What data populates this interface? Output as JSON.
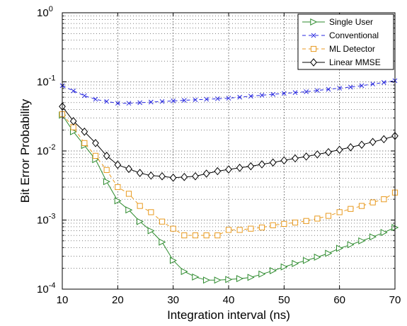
{
  "chart_data": {
    "type": "line",
    "xlabel": "Integration interval (ns)",
    "ylabel": "Bit Error Probability",
    "xlim": [
      10,
      70
    ],
    "ylim": [
      0.0001,
      1
    ],
    "yscale": "log",
    "grid": true,
    "legend_position": "top-right",
    "x_ticks": [
      "10",
      "20",
      "30",
      "40",
      "50",
      "60",
      "70"
    ],
    "y_ticks": [
      {
        "base": "10",
        "exp": "0"
      },
      {
        "base": "10",
        "exp": "-1"
      },
      {
        "base": "10",
        "exp": "-2"
      },
      {
        "base": "10",
        "exp": "-3"
      },
      {
        "base": "10",
        "exp": "-4"
      }
    ],
    "x": [
      10,
      12,
      14,
      16,
      18,
      20,
      22,
      24,
      26,
      28,
      30,
      32,
      34,
      36,
      38,
      40,
      42,
      44,
      46,
      48,
      50,
      52,
      54,
      56,
      58,
      60,
      62,
      64,
      66,
      68,
      70
    ],
    "series": [
      {
        "name": "Single User",
        "color": "#2e8b2e",
        "dash": "solid",
        "marker": "triangle-right",
        "values": [
          0.033,
          0.019,
          0.012,
          0.0075,
          0.0036,
          0.0019,
          0.0014,
          0.00095,
          0.0007,
          0.00048,
          0.00026,
          0.00018,
          0.00015,
          0.000135,
          0.000135,
          0.000138,
          0.000142,
          0.000148,
          0.000165,
          0.000185,
          0.00021,
          0.000235,
          0.00026,
          0.00029,
          0.00033,
          0.00039,
          0.00044,
          0.0005,
          0.00057,
          0.00066,
          0.00078
        ]
      },
      {
        "name": "Conventional",
        "color": "#2a2ae0",
        "dash": "dashed",
        "marker": "x",
        "values": [
          0.088,
          0.074,
          0.063,
          0.056,
          0.052,
          0.049,
          0.049,
          0.05,
          0.051,
          0.052,
          0.053,
          0.054,
          0.055,
          0.056,
          0.057,
          0.058,
          0.06,
          0.062,
          0.064,
          0.066,
          0.068,
          0.07,
          0.072,
          0.075,
          0.078,
          0.081,
          0.084,
          0.088,
          0.093,
          0.098,
          0.104
        ]
      },
      {
        "name": "ML Detector",
        "color": "#e89a20",
        "dash": "dashed",
        "marker": "square",
        "values": [
          0.034,
          0.022,
          0.013,
          0.0085,
          0.0053,
          0.003,
          0.0024,
          0.0016,
          0.0013,
          0.00095,
          0.00075,
          0.0006,
          0.0006,
          0.0006,
          0.0006,
          0.00072,
          0.00072,
          0.00075,
          0.00078,
          0.00084,
          0.00088,
          0.00092,
          0.00097,
          0.00105,
          0.00115,
          0.0013,
          0.00145,
          0.0016,
          0.0018,
          0.002,
          0.0025
        ]
      },
      {
        "name": "Linear MMSE",
        "color": "#000000",
        "dash": "solid",
        "marker": "diamond",
        "values": [
          0.044,
          0.027,
          0.019,
          0.013,
          0.0085,
          0.0063,
          0.0055,
          0.0048,
          0.0044,
          0.0043,
          0.0041,
          0.0042,
          0.0043,
          0.0047,
          0.0051,
          0.0054,
          0.0057,
          0.006,
          0.0064,
          0.0068,
          0.0073,
          0.0078,
          0.0083,
          0.0089,
          0.0096,
          0.0104,
          0.0113,
          0.0123,
          0.0135,
          0.0148,
          0.0165
        ]
      }
    ]
  }
}
